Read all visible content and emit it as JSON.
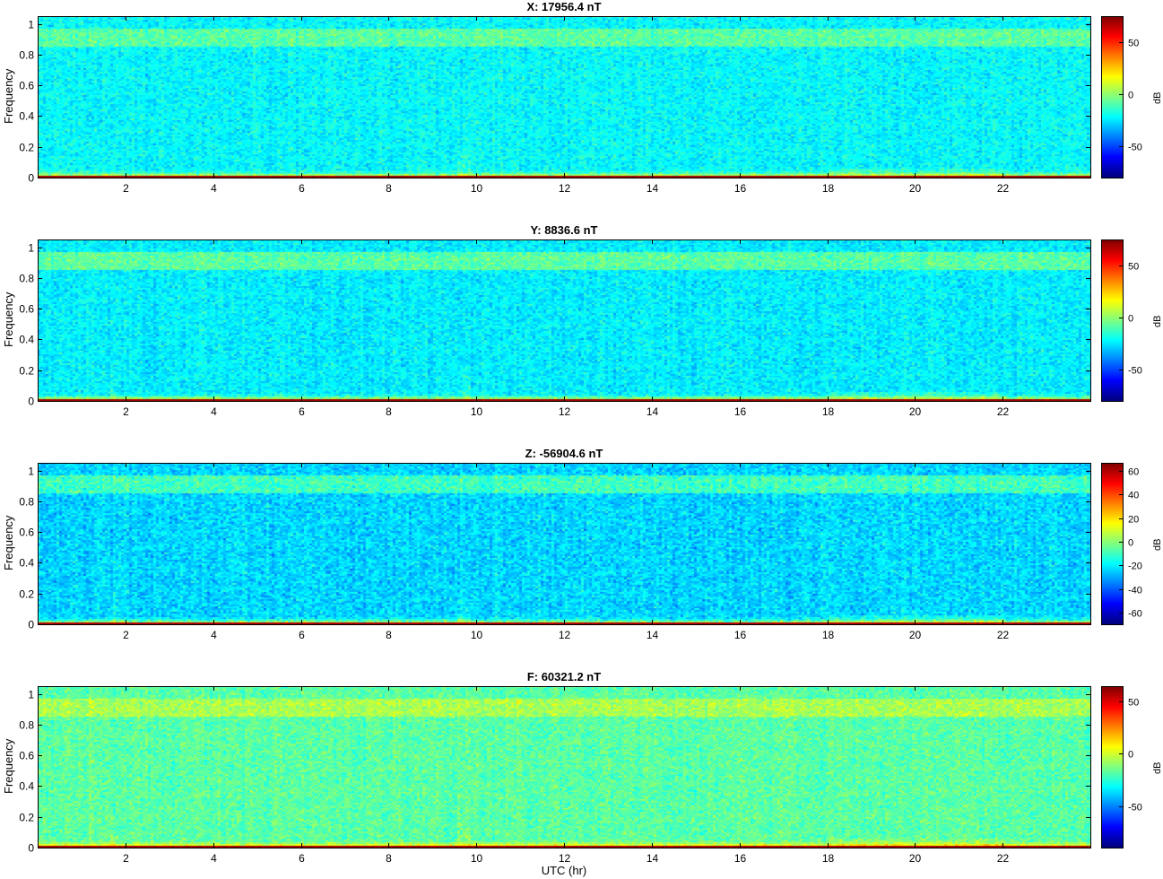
{
  "xlabel": "UTC (hr)",
  "colormap": "jet",
  "colors": {
    "jet_low": "#00008f",
    "jet_mid": "#00ffff",
    "jet_high": "#800000",
    "axes": "#000000",
    "background": "#ffffff"
  },
  "chart_data": [
    {
      "type": "heatmap",
      "title": "X: 17956.4 nT",
      "ylabel": "Frequency",
      "xlabel": "",
      "x_ticks": [
        2,
        4,
        6,
        8,
        10,
        12,
        14,
        16,
        18,
        20,
        22
      ],
      "xlim": [
        0,
        24
      ],
      "y_ticks": [
        0,
        0.2,
        0.4,
        0.6,
        0.8,
        1
      ],
      "ylim": [
        0,
        1.05
      ],
      "colorbar": {
        "label": "dB",
        "ticks": [
          -50,
          0,
          50
        ],
        "clim": [
          -80,
          75
        ]
      },
      "background_db": -22,
      "upper_band_db": -8,
      "baseline_db": 72
    },
    {
      "type": "heatmap",
      "title": "Y: 8836.6 nT",
      "ylabel": "Frequency",
      "xlabel": "",
      "x_ticks": [
        2,
        4,
        6,
        8,
        10,
        12,
        14,
        16,
        18,
        20,
        22
      ],
      "xlim": [
        0,
        24
      ],
      "y_ticks": [
        0,
        0.2,
        0.4,
        0.6,
        0.8,
        1
      ],
      "ylim": [
        0,
        1.05
      ],
      "colorbar": {
        "label": "dB",
        "ticks": [
          -50,
          0,
          50
        ],
        "clim": [
          -80,
          75
        ]
      },
      "background_db": -24,
      "upper_band_db": -8,
      "baseline_db": 72
    },
    {
      "type": "heatmap",
      "title": "Z: -56904.6 nT",
      "ylabel": "Frequency",
      "xlabel": "",
      "x_ticks": [
        2,
        4,
        6,
        8,
        10,
        12,
        14,
        16,
        18,
        20,
        22
      ],
      "xlim": [
        0,
        24
      ],
      "y_ticks": [
        0,
        0.2,
        0.4,
        0.6,
        0.8,
        1
      ],
      "ylim": [
        0,
        1.05
      ],
      "colorbar": {
        "label": "dB",
        "ticks": [
          -60,
          -40,
          -20,
          0,
          20,
          40,
          60
        ],
        "clim": [
          -70,
          67
        ]
      },
      "background_db": -24,
      "upper_band_db": -10,
      "baseline_db": 62
    },
    {
      "type": "heatmap",
      "title": "F: 60321.2 nT",
      "ylabel": "Frequency",
      "xlabel": "UTC (hr)",
      "x_ticks": [
        2,
        4,
        6,
        8,
        10,
        12,
        14,
        16,
        18,
        20,
        22
      ],
      "xlim": [
        0,
        24
      ],
      "y_ticks": [
        0,
        0.2,
        0.4,
        0.6,
        0.8,
        1
      ],
      "ylim": [
        0,
        1.05
      ],
      "colorbar": {
        "label": "dB",
        "ticks": [
          -50,
          0,
          50
        ],
        "clim": [
          -90,
          65
        ]
      },
      "background_db": -18,
      "upper_band_db": -6,
      "baseline_db": 62
    }
  ]
}
